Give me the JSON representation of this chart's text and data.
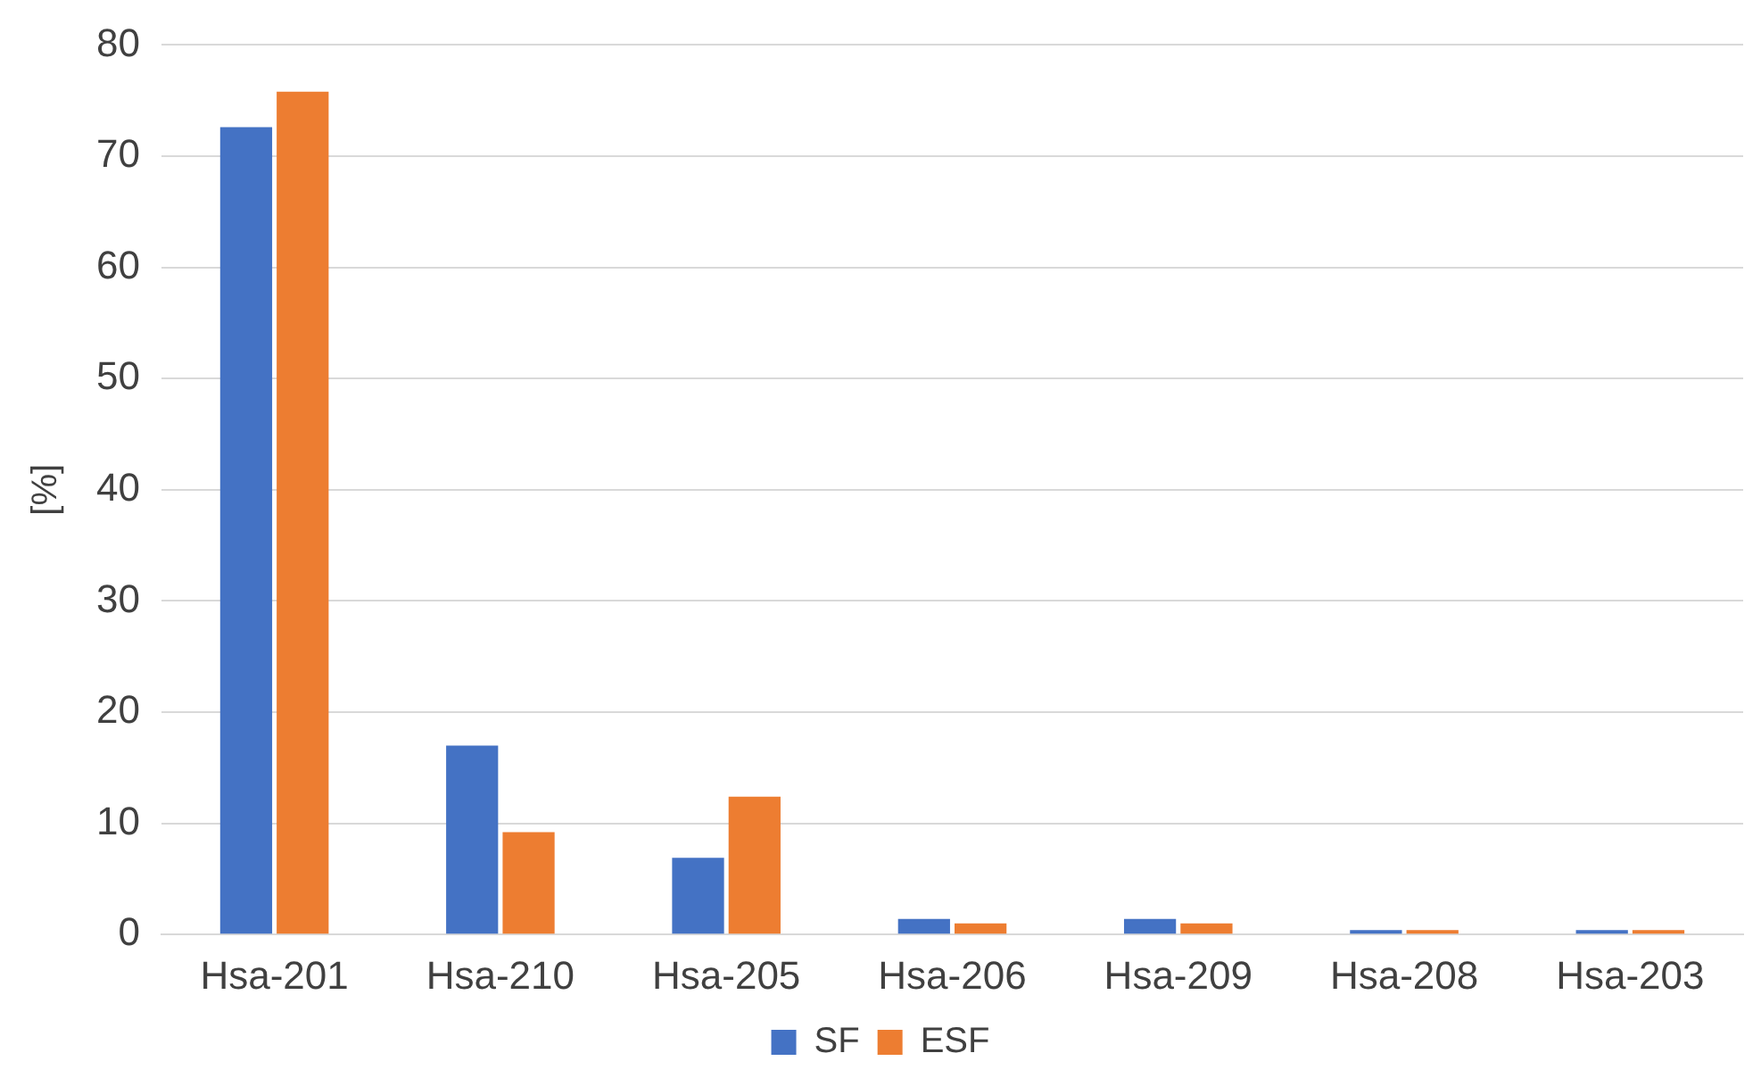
{
  "chart_data": {
    "type": "bar",
    "ylabel": "[%]",
    "categories": [
      "Hsa-201",
      "Hsa-210",
      "Hsa-205",
      "Hsa-206",
      "Hsa-209",
      "Hsa-208",
      "Hsa-203"
    ],
    "series": [
      {
        "name": "SF",
        "color": "#4472c4",
        "values": [
          72.6,
          17.0,
          6.9,
          1.4,
          1.4,
          0.4,
          0.4
        ]
      },
      {
        "name": "ESF",
        "color": "#ed7d31",
        "values": [
          75.8,
          9.2,
          12.4,
          1.0,
          1.0,
          0.4,
          0.4
        ]
      }
    ],
    "ylim": [
      0,
      80
    ],
    "yticks": [
      0,
      10,
      20,
      30,
      40,
      50,
      60,
      70,
      80
    ],
    "grid": "y",
    "legend": "bottom"
  }
}
